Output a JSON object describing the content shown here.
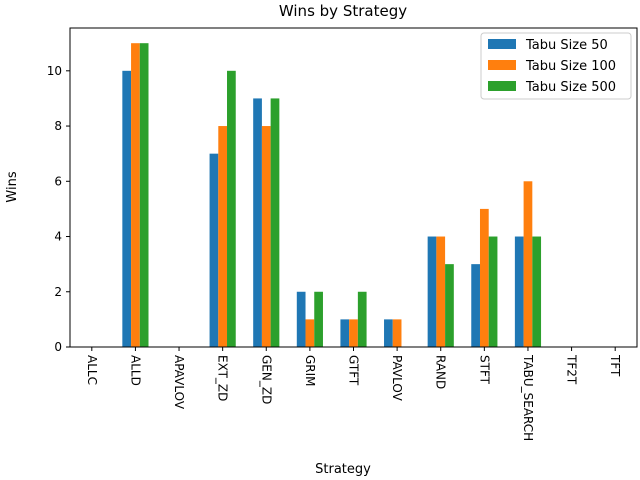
{
  "chart_data": {
    "type": "bar",
    "title": "Wins by Strategy",
    "xlabel": "Strategy",
    "ylabel": "Wins",
    "ylim": [
      0,
      11.55
    ],
    "yticks": [
      0,
      2,
      4,
      6,
      8,
      10
    ],
    "grid": false,
    "legend_position": "top-right",
    "categories": [
      "ALLC",
      "ALLD",
      "APAVLOV",
      "EXT_ZD",
      "GEN_ZD",
      "GRIM",
      "GTFT",
      "PAVLOV",
      "RAND",
      "STFT",
      "TABU_SEARCH",
      "TF2T",
      "TFT"
    ],
    "series": [
      {
        "name": "Tabu Size 50",
        "color": "#1f77b4",
        "values": [
          0,
          10,
          0,
          7,
          9,
          2,
          1,
          1,
          4,
          3,
          4,
          0,
          0
        ]
      },
      {
        "name": "Tabu Size 100",
        "color": "#ff7f0e",
        "values": [
          0,
          11,
          0,
          8,
          8,
          1,
          1,
          1,
          4,
          5,
          6,
          0,
          0
        ]
      },
      {
        "name": "Tabu Size 500",
        "color": "#2ca02c",
        "values": [
          0,
          11,
          0,
          10,
          9,
          2,
          2,
          0,
          3,
          4,
          4,
          0,
          0
        ]
      }
    ]
  }
}
